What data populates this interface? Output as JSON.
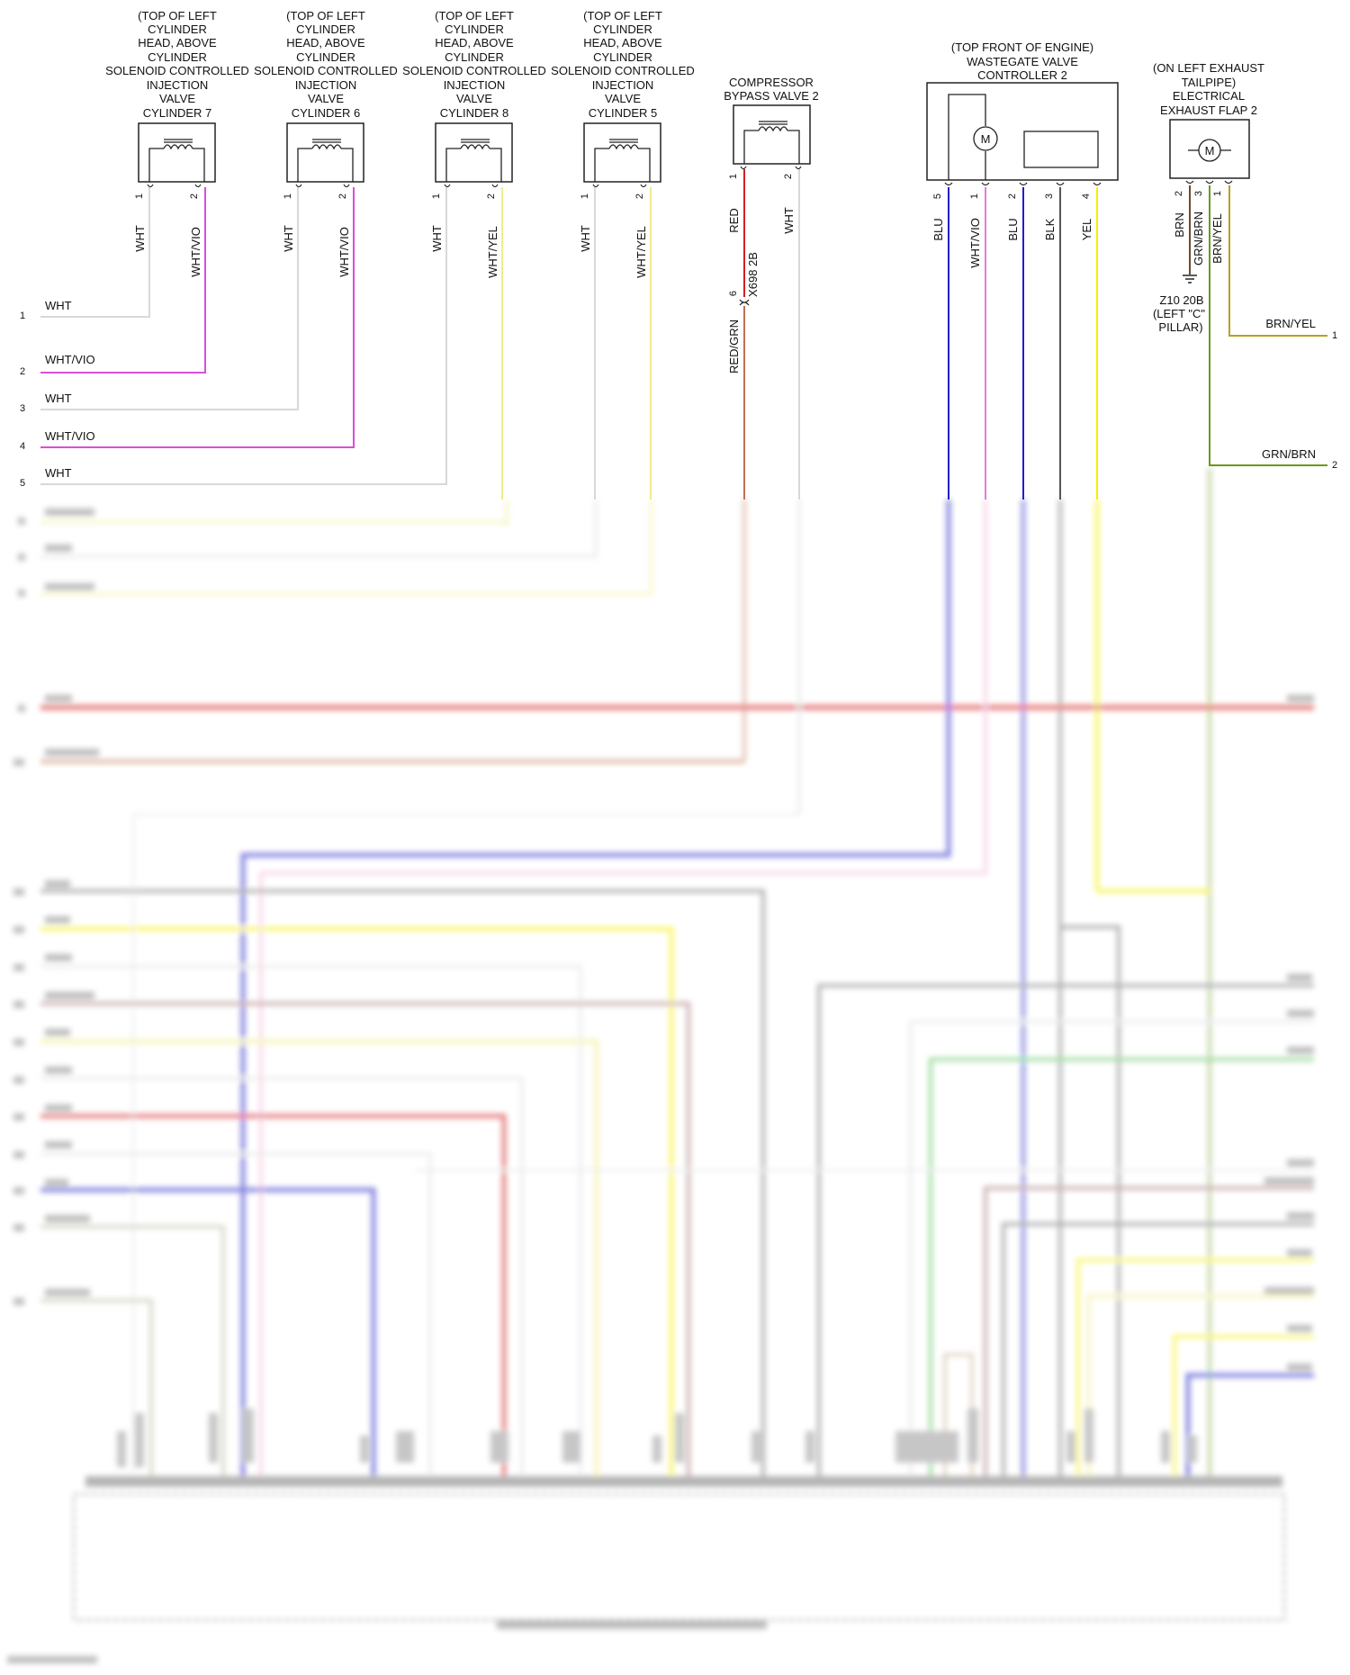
{
  "colors": {
    "WHT": "#d8d8d8",
    "WHT/VIO": "#d84fd8",
    "WHT/YEL": "#f2ec8c",
    "RED": "#d42020",
    "RED/GRN": "#c07050",
    "BLU": "#2020c8",
    "BLK": "#707070",
    "YEL": "#f5f000",
    "BRN": "#6b4a2a",
    "GRN/BRN": "#6a9a1a",
    "BRN/YEL": "#b8a020",
    "GRY": "#a0a0a0",
    "BRN/WHT": "#a07070",
    "GRN": "#50c050",
    "VIO/BLU": "#b8b8a0",
    "PINK": "#f0a0c8"
  },
  "components": [
    {
      "id": "inj7",
      "lines": [
        "(TOP OF LEFT",
        "CYLINDER",
        "HEAD, ABOVE",
        "CYLINDER",
        "SOLENOID CONTROLLED",
        "INJECTION",
        "VALVE",
        "CYLINDER 7"
      ],
      "pins": [
        "1",
        "2"
      ],
      "wires": [
        "WHT",
        "WHT/VIO"
      ]
    },
    {
      "id": "inj6",
      "lines": [
        "(TOP OF LEFT",
        "CYLINDER",
        "HEAD, ABOVE",
        "CYLINDER",
        "SOLENOID CONTROLLED",
        "INJECTION",
        "VALVE",
        "CYLINDER 6"
      ],
      "pins": [
        "1",
        "2"
      ],
      "wires": [
        "WHT",
        "WHT/VIO"
      ]
    },
    {
      "id": "inj8",
      "lines": [
        "(TOP OF LEFT",
        "CYLINDER",
        "HEAD, ABOVE",
        "CYLINDER",
        "SOLENOID CONTROLLED",
        "INJECTION",
        "VALVE",
        "CYLINDER 8"
      ],
      "pins": [
        "1",
        "2"
      ],
      "wires": [
        "WHT",
        "WHT/YEL"
      ]
    },
    {
      "id": "inj5",
      "lines": [
        "(TOP OF LEFT",
        "CYLINDER",
        "HEAD, ABOVE",
        "CYLINDER",
        "SOLENOID CONTROLLED",
        "INJECTION",
        "VALVE",
        "CYLINDER 5"
      ],
      "pins": [
        "1",
        "2"
      ],
      "wires": [
        "WHT",
        "WHT/YEL"
      ]
    },
    {
      "id": "bypass",
      "lines": [
        "COMPRESSOR",
        "BYPASS VALVE 2"
      ],
      "pins": [
        "1",
        "2"
      ],
      "wires": [
        "RED",
        "WHT"
      ]
    },
    {
      "id": "wastegate",
      "lines": [
        "(TOP FRONT OF ENGINE)",
        "WASTEGATE VALVE",
        "CONTROLLER 2"
      ],
      "pins": [
        "5",
        "1",
        "2",
        "3",
        "4"
      ],
      "wires": [
        "BLU",
        "WHT/VIO",
        "BLU",
        "BLK",
        "YEL"
      ]
    },
    {
      "id": "flap",
      "lines": [
        "(ON LEFT EXHAUST",
        "TAILPIPE)",
        "ELECTRICAL",
        "EXHAUST FLAP 2"
      ],
      "pins": [
        "2",
        "3",
        "1"
      ],
      "wires": [
        "BRN",
        "GRN/BRN",
        "BRN/YEL"
      ]
    }
  ],
  "motor_symbol": "M",
  "connector": {
    "id": "X698 2B",
    "pin": "6",
    "wire": "RED/GRN"
  },
  "ground": {
    "lines": [
      "Z10 20B",
      "(LEFT \"C\"",
      "PILLAR)"
    ]
  },
  "left_rows": [
    {
      "num": "1",
      "wire": "WHT"
    },
    {
      "num": "2",
      "wire": "WHT/VIO"
    },
    {
      "num": "3",
      "wire": "WHT"
    },
    {
      "num": "4",
      "wire": "WHT/VIO"
    },
    {
      "num": "5",
      "wire": "WHT"
    }
  ],
  "right_rows": [
    {
      "num": "1",
      "wire": "BRN/YEL"
    },
    {
      "num": "2",
      "wire": "GRN/BRN"
    }
  ]
}
